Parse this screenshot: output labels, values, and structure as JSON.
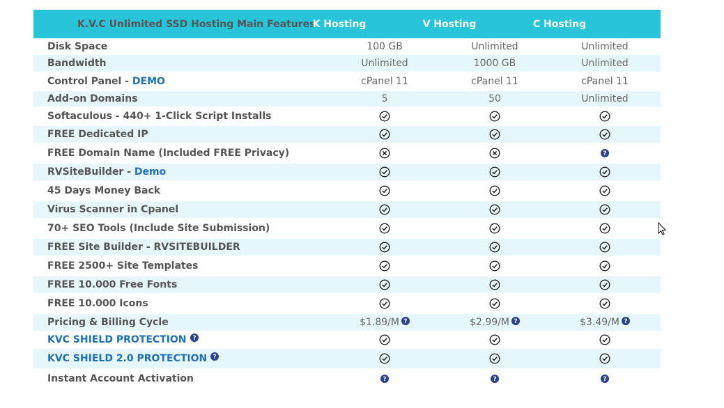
{
  "header": {
    "title": "K.V.C Unlimited SSD Hosting Main Features",
    "plans": [
      "K Hosting",
      "V Hosting",
      "C Hosting"
    ]
  },
  "rows": [
    {
      "label": "Disk Space",
      "link": "",
      "cells": [
        {
          "t": "text",
          "v": "100 GB"
        },
        {
          "t": "text",
          "v": "Unlimited"
        },
        {
          "t": "text",
          "v": "Unlimited"
        }
      ]
    },
    {
      "label": "Bandwidth",
      "link": "",
      "cells": [
        {
          "t": "text",
          "v": "Unlimited"
        },
        {
          "t": "text",
          "v": "1000 GB"
        },
        {
          "t": "text",
          "v": "Unlimited"
        }
      ]
    },
    {
      "label": "Control Panel - ",
      "link": "DEMO",
      "cells": [
        {
          "t": "text",
          "v": "cPanel 11"
        },
        {
          "t": "text",
          "v": "cPanel 11"
        },
        {
          "t": "text",
          "v": "cPanel 11"
        }
      ]
    },
    {
      "label": "Add-on Domains",
      "link": "",
      "cells": [
        {
          "t": "text",
          "v": "5"
        },
        {
          "t": "text",
          "v": "50"
        },
        {
          "t": "text",
          "v": "Unlimited"
        }
      ]
    },
    {
      "label": "Softaculous - 440+ 1-Click Script Installs",
      "link": "",
      "cells": [
        {
          "t": "check"
        },
        {
          "t": "check"
        },
        {
          "t": "check"
        }
      ]
    },
    {
      "label": "FREE Dedicated IP",
      "link": "",
      "cells": [
        {
          "t": "check"
        },
        {
          "t": "check"
        },
        {
          "t": "check"
        }
      ]
    },
    {
      "label": "FREE Domain Name (Included FREE Privacy)",
      "link": "",
      "cells": [
        {
          "t": "cross"
        },
        {
          "t": "cross"
        },
        {
          "t": "help"
        }
      ]
    },
    {
      "label": "RVSiteBuilder - ",
      "link": "Demo",
      "cells": [
        {
          "t": "check"
        },
        {
          "t": "check"
        },
        {
          "t": "check"
        }
      ]
    },
    {
      "label": "45 Days Money Back",
      "link": "",
      "cells": [
        {
          "t": "check"
        },
        {
          "t": "check"
        },
        {
          "t": "check"
        }
      ]
    },
    {
      "label": "Virus Scanner in Cpanel",
      "link": "",
      "cells": [
        {
          "t": "check"
        },
        {
          "t": "check"
        },
        {
          "t": "check"
        }
      ]
    },
    {
      "label": "70+ SEO Tools (Include Site Submission)",
      "link": "",
      "cells": [
        {
          "t": "check"
        },
        {
          "t": "check"
        },
        {
          "t": "check"
        }
      ]
    },
    {
      "label": "FREE Site Builder - RVSITEBUILDER",
      "link": "",
      "cells": [
        {
          "t": "check"
        },
        {
          "t": "check"
        },
        {
          "t": "check"
        }
      ]
    },
    {
      "label": "FREE 2500+ Site Templates",
      "link": "",
      "cells": [
        {
          "t": "check"
        },
        {
          "t": "check"
        },
        {
          "t": "check"
        }
      ]
    },
    {
      "label": "FREE 10.000 Free Fonts",
      "link": "",
      "cells": [
        {
          "t": "check"
        },
        {
          "t": "check"
        },
        {
          "t": "check"
        }
      ]
    },
    {
      "label": "FREE 10.000 Icons",
      "link": "",
      "cells": [
        {
          "t": "check"
        },
        {
          "t": "check"
        },
        {
          "t": "check"
        }
      ]
    },
    {
      "label": "Pricing & Billing Cycle",
      "link": "",
      "cells": [
        {
          "t": "price",
          "v": "$1.89/M"
        },
        {
          "t": "price",
          "v": "$2.99/M"
        },
        {
          "t": "price",
          "v": "$3.49/M"
        }
      ]
    },
    {
      "label": "",
      "link": "KVC SHIELD PROTECTION",
      "linkHelp": true,
      "cells": [
        {
          "t": "check"
        },
        {
          "t": "check"
        },
        {
          "t": "check"
        }
      ]
    },
    {
      "label": "",
      "link": "KVC SHIELD 2.0 PROTECTION",
      "linkHelp": true,
      "cells": [
        {
          "t": "check"
        },
        {
          "t": "check"
        },
        {
          "t": "check"
        }
      ]
    },
    {
      "label": "Instant Account Activation",
      "link": "",
      "cells": [
        {
          "t": "help"
        },
        {
          "t": "help"
        },
        {
          "t": "help"
        }
      ]
    }
  ],
  "icons": {
    "check": "check-circle-icon",
    "cross": "cross-circle-icon",
    "help": "help-circle-icon"
  },
  "colors": {
    "header_bg": "#27c4da",
    "alt_row_bg": "#e6f7fb",
    "link": "#1f6fb5",
    "help_icon": "#2b3f8f"
  }
}
